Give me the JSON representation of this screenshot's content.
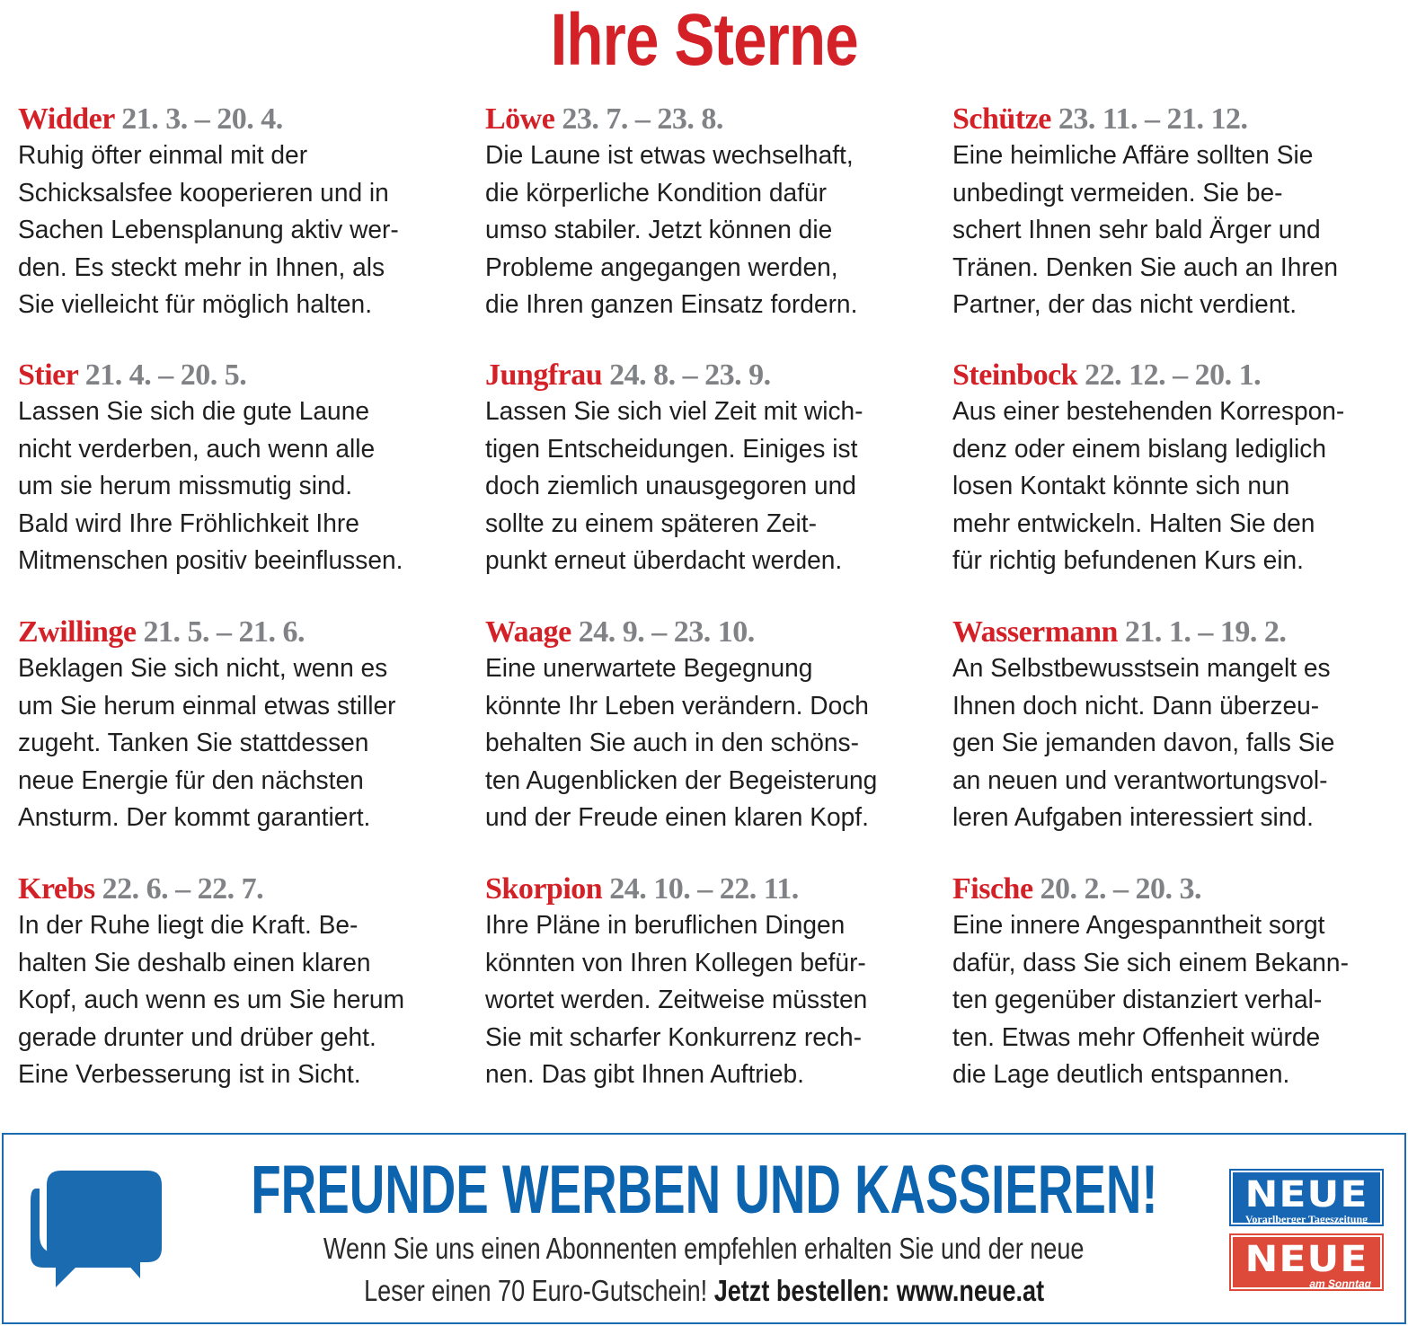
{
  "title": "Ihre Sterne",
  "signs": [
    {
      "name": "Widder",
      "dates": "21. 3. – 20. 4.",
      "lines": [
        "Ruhig öfter einmal mit der",
        "Schicksalsfee kooperieren und in",
        "Sachen Lebensplanung aktiv wer-",
        "den. Es steckt mehr in Ihnen, als",
        "Sie vielleicht für möglich halten."
      ]
    },
    {
      "name": "Stier",
      "dates": "21. 4. – 20. 5.",
      "lines": [
        "Lassen Sie sich die gute Laune",
        "nicht verderben, auch wenn alle",
        "um sie herum missmutig sind.",
        "Bald wird Ihre Fröhlichkeit Ihre",
        "Mitmenschen positiv beeinflussen."
      ]
    },
    {
      "name": "Zwillinge",
      "dates": "21. 5. – 21. 6.",
      "lines": [
        "Beklagen Sie sich nicht, wenn es",
        "um Sie herum einmal etwas stiller",
        "zugeht. Tanken Sie stattdessen",
        "neue Energie für den nächsten",
        "Ansturm. Der kommt garantiert."
      ]
    },
    {
      "name": "Krebs",
      "dates": "22. 6. – 22. 7.",
      "lines": [
        "In der Ruhe liegt die Kraft. Be-",
        "halten Sie deshalb einen klaren",
        "Kopf, auch wenn es um Sie herum",
        "gerade drunter und drüber geht.",
        "Eine Verbesserung ist in Sicht."
      ]
    },
    {
      "name": "Löwe",
      "dates": "23. 7. – 23. 8.",
      "lines": [
        "Die Laune ist etwas wechselhaft,",
        "die körperliche Kondition dafür",
        "umso stabiler. Jetzt können die",
        "Probleme angegangen werden,",
        "die Ihren ganzen Einsatz fordern."
      ]
    },
    {
      "name": "Jungfrau",
      "dates": "24. 8. – 23. 9.",
      "lines": [
        "Lassen Sie sich viel Zeit mit wich-",
        "tigen Entscheidungen. Einiges ist",
        "doch ziemlich unausgegoren und",
        "sollte zu einem späteren Zeit-",
        "punkt erneut überdacht werden."
      ]
    },
    {
      "name": "Waage",
      "dates": "24. 9. – 23. 10.",
      "lines": [
        "Eine unerwartete Begegnung",
        "könnte Ihr Leben verändern. Doch",
        "behalten Sie auch in den schöns-",
        "ten Augenblicken der Begeisterung",
        "und der Freude einen klaren Kopf."
      ]
    },
    {
      "name": "Skorpion",
      "dates": "24. 10. – 22. 11.",
      "lines": [
        "Ihre Pläne in beruflichen Dingen",
        "könnten von Ihren Kollegen befür-",
        "wortet werden. Zeitweise müssten",
        "Sie mit scharfer Konkurrenz rech-",
        "nen. Das gibt Ihnen Auftrieb."
      ]
    },
    {
      "name": "Schütze",
      "dates": "23. 11. – 21. 12.",
      "lines": [
        "Eine heimliche Affäre sollten Sie",
        "unbedingt vermeiden. Sie be-",
        "schert Ihnen sehr bald Ärger und",
        "Tränen. Denken Sie auch an Ihren",
        "Partner, der das nicht verdient."
      ]
    },
    {
      "name": "Steinbock",
      "dates": "22. 12. – 20. 1.",
      "lines": [
        "Aus einer bestehenden Korrespon-",
        "denz oder einem bislang lediglich",
        "losen Kontakt könnte sich nun",
        "mehr entwickeln. Halten Sie den",
        "für richtig befundenen Kurs ein."
      ]
    },
    {
      "name": "Wassermann",
      "dates": "21. 1. – 19. 2.",
      "lines": [
        "An Selbstbewusstsein mangelt es",
        "Ihnen doch nicht. Dann überzeu-",
        "gen Sie jemanden davon, falls Sie",
        "an neuen und verantwortungsvol-",
        "leren Aufgaben interessiert sind."
      ]
    },
    {
      "name": "Fische",
      "dates": "20. 2. – 20. 3.",
      "lines": [
        "Eine innere Angespanntheit sorgt",
        "dafür, dass Sie sich einem Bekann-",
        "ten gegenüber distanziert verhal-",
        "ten. Etwas mehr Offenheit würde",
        "die Lage deutlich entspannen."
      ]
    }
  ],
  "ad": {
    "headline": "FREUNDE WERBEN UND KASSIEREN!",
    "line1": "Wenn Sie uns einen Abonnenten empfehlen erhalten Sie und der neue",
    "line2": "Leser einen 70 Euro-Gutschein!",
    "cta": "Jetzt bestellen: www.neue.at",
    "icon": "speech-bubbles-icon",
    "logos": [
      {
        "name": "NEUE",
        "subtitle": "Vorarlberger Tageszeitung",
        "color": "#1666b3"
      },
      {
        "name": "NEUE",
        "subtitle": "am Sonntag",
        "color": "#dd4a3a"
      }
    ]
  },
  "colors": {
    "accent": "#d42027",
    "date": "#808285",
    "ad_blue": "#0c63ae"
  }
}
